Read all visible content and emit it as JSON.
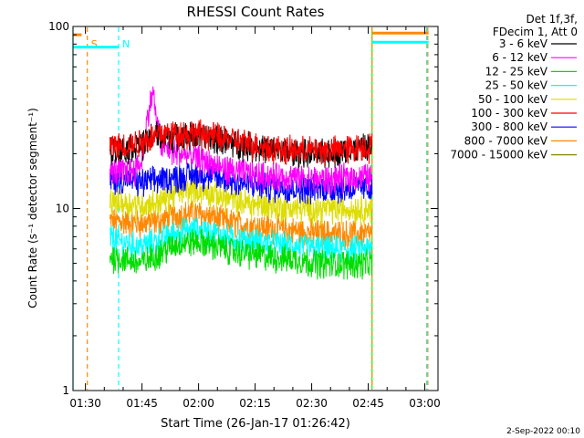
{
  "chart_data": {
    "type": "line",
    "title": "RHESSI Count Rates",
    "xlabel": "Start Time (26-Jan-17 01:26:42)",
    "ylabel": "Count Rate (s⁻¹ detector segment⁻¹)",
    "yscale": "log",
    "ylim": [
      1,
      100
    ],
    "xlim_minutes": [
      86.7,
      183.5
    ],
    "x_ticks": [
      {
        "label": "01:30",
        "minutes": 90
      },
      {
        "label": "01:45",
        "minutes": 105
      },
      {
        "label": "02:00",
        "minutes": 120
      },
      {
        "label": "02:15",
        "minutes": 135
      },
      {
        "label": "02:30",
        "minutes": 150
      },
      {
        "label": "02:45",
        "minutes": 165
      },
      {
        "label": "03:00",
        "minutes": 180
      }
    ],
    "y_ticks": [
      {
        "label": "1",
        "value": 1
      },
      {
        "label": "10",
        "value": 10
      },
      {
        "label": "100",
        "value": 100
      }
    ],
    "legend_header": [
      "Det 1f,3f,",
      "FDecim 1, Att 0"
    ],
    "legend_position": "top-right outside",
    "data_time_range_minutes": [
      96.5,
      166.0
    ],
    "series": [
      {
        "name": "3 - 6 keV",
        "color": "#000000",
        "points": [
          [
            96.5,
            21
          ],
          [
            100,
            21
          ],
          [
            103,
            22
          ],
          [
            106,
            23
          ],
          [
            108,
            26
          ],
          [
            110,
            25
          ],
          [
            115,
            25
          ],
          [
            120,
            25.5
          ],
          [
            125,
            24
          ],
          [
            130,
            23
          ],
          [
            135,
            22
          ],
          [
            140,
            21
          ],
          [
            145,
            20.5
          ],
          [
            150,
            20
          ],
          [
            155,
            20.5
          ],
          [
            160,
            21
          ],
          [
            166,
            22
          ]
        ]
      },
      {
        "name": "6 - 12 keV",
        "color": "#ff00ff",
        "points": [
          [
            96.5,
            16
          ],
          [
            100,
            16
          ],
          [
            103,
            16.5
          ],
          [
            105,
            18
          ],
          [
            107,
            36
          ],
          [
            108,
            45
          ],
          [
            108.5,
            33
          ],
          [
            110,
            22
          ],
          [
            115,
            20
          ],
          [
            120,
            19
          ],
          [
            125,
            17
          ],
          [
            130,
            16
          ],
          [
            135,
            15.5
          ],
          [
            140,
            15
          ],
          [
            145,
            15
          ],
          [
            150,
            14.5
          ],
          [
            155,
            14.5
          ],
          [
            160,
            15
          ],
          [
            166,
            15
          ]
        ]
      },
      {
        "name": "12 - 25 keV",
        "color": "#00dd00",
        "points": [
          [
            96.5,
            5.5
          ],
          [
            100,
            5.3
          ],
          [
            105,
            5.0
          ],
          [
            110,
            5.8
          ],
          [
            115,
            6.5
          ],
          [
            120,
            6.6
          ],
          [
            125,
            6.2
          ],
          [
            130,
            5.8
          ],
          [
            135,
            5.6
          ],
          [
            140,
            5.4
          ],
          [
            145,
            5.3
          ],
          [
            150,
            5.1
          ],
          [
            155,
            5.0
          ],
          [
            160,
            5.0
          ],
          [
            166,
            5.0
          ]
        ]
      },
      {
        "name": "25 - 50 keV",
        "color": "#00ffff",
        "points": [
          [
            96.5,
            7.0
          ],
          [
            100,
            6.5
          ],
          [
            105,
            6.2
          ],
          [
            110,
            6.8
          ],
          [
            115,
            7.5
          ],
          [
            120,
            7.6
          ],
          [
            125,
            7.2
          ],
          [
            130,
            6.8
          ],
          [
            135,
            6.6
          ],
          [
            140,
            6.4
          ],
          [
            145,
            6.2
          ],
          [
            150,
            6.1
          ],
          [
            155,
            6.0
          ],
          [
            160,
            6.0
          ],
          [
            166,
            6.0
          ]
        ]
      },
      {
        "name": "50 - 100 keV",
        "color": "#dddd00",
        "points": [
          [
            96.5,
            11
          ],
          [
            100,
            10.8
          ],
          [
            105,
            10.5
          ],
          [
            110,
            11
          ],
          [
            115,
            12.5
          ],
          [
            120,
            12.8
          ],
          [
            125,
            11.8
          ],
          [
            130,
            11
          ],
          [
            135,
            10.6
          ],
          [
            140,
            10.3
          ],
          [
            145,
            10.1
          ],
          [
            150,
            10
          ],
          [
            155,
            10
          ],
          [
            160,
            10
          ],
          [
            166,
            10
          ]
        ]
      },
      {
        "name": "100 - 300 keV",
        "color": "#ff0000",
        "points": [
          [
            96.5,
            22
          ],
          [
            100,
            22
          ],
          [
            103,
            23
          ],
          [
            106,
            24
          ],
          [
            110,
            26
          ],
          [
            115,
            26
          ],
          [
            120,
            26
          ],
          [
            125,
            25
          ],
          [
            130,
            23.5
          ],
          [
            135,
            22.5
          ],
          [
            140,
            21.5
          ],
          [
            145,
            21
          ],
          [
            150,
            21
          ],
          [
            155,
            21
          ],
          [
            160,
            21.5
          ],
          [
            166,
            22
          ]
        ]
      },
      {
        "name": "300 - 800 keV",
        "color": "#0000ff",
        "points": [
          [
            96.5,
            14.5
          ],
          [
            100,
            14.5
          ],
          [
            105,
            14
          ],
          [
            110,
            14.5
          ],
          [
            115,
            15
          ],
          [
            120,
            15.5
          ],
          [
            125,
            14.8
          ],
          [
            130,
            14
          ],
          [
            135,
            13.5
          ],
          [
            140,
            13.2
          ],
          [
            145,
            13
          ],
          [
            150,
            13
          ],
          [
            155,
            13
          ],
          [
            160,
            13
          ],
          [
            166,
            13
          ]
        ]
      },
      {
        "name": "800 - 7000 keV",
        "color": "#ff8800",
        "points": [
          [
            96.5,
            8.5
          ],
          [
            100,
            8.5
          ],
          [
            105,
            8.3
          ],
          [
            110,
            8.6
          ],
          [
            115,
            9.3
          ],
          [
            120,
            9.4
          ],
          [
            125,
            8.8
          ],
          [
            130,
            8.3
          ],
          [
            135,
            8.0
          ],
          [
            140,
            7.8
          ],
          [
            145,
            7.6
          ],
          [
            150,
            7.4
          ],
          [
            155,
            7.3
          ],
          [
            160,
            7.3
          ],
          [
            166,
            7.3
          ]
        ]
      },
      {
        "name": "7000 - 15000 keV",
        "color": "#888800",
        "points": []
      }
    ],
    "annotations": [
      {
        "label": "S",
        "color": "#ff8800",
        "minutes": 90.5,
        "kind": "dashed-line"
      },
      {
        "label": "N",
        "color": "#00ffff",
        "minutes": 98.8,
        "kind": "dashed-line"
      },
      {
        "label": "",
        "color": "#00ffff",
        "minutes": 86.7,
        "kind": "solid-line"
      },
      {
        "label": "",
        "color": "#00ff00",
        "minutes": 166.0,
        "kind": "solid-line"
      },
      {
        "label": "",
        "color": "#ff8800",
        "minutes": 166.0,
        "kind": "dashed-line"
      },
      {
        "label": "",
        "color": "#00ffff",
        "minutes": 180.5,
        "kind": "dashed-line"
      },
      {
        "label": "",
        "color": "#ff8800",
        "minutes": 180.8,
        "kind": "dashed-line"
      }
    ],
    "status_bars": [
      {
        "color": "#ff8800",
        "value": 90,
        "from": 86.7,
        "to": 89.0
      },
      {
        "color": "#00ffff",
        "value": 77,
        "from": 86.7,
        "to": 98.8
      },
      {
        "color": "#ff8800",
        "value": 92,
        "from": 166.0,
        "to": 181.0
      },
      {
        "color": "#00ffff",
        "value": 82,
        "from": 166.0,
        "to": 181.0
      }
    ],
    "footer": "2-Sep-2022 00:10"
  }
}
